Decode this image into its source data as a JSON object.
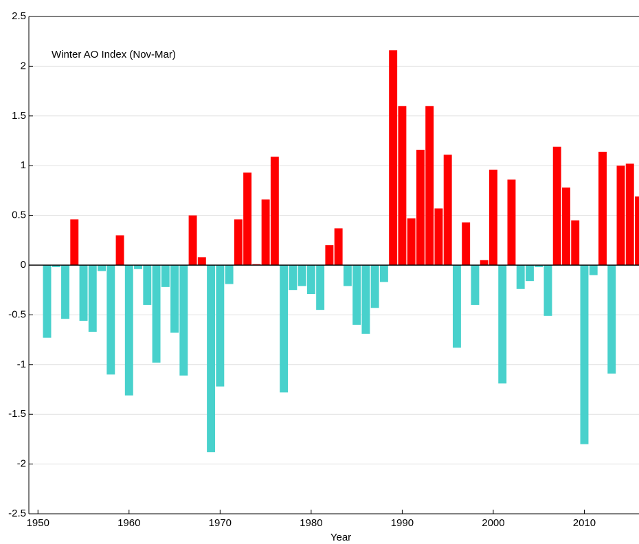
{
  "chart_data": {
    "type": "bar",
    "annotation": "Winter AO Index (Nov-Mar)",
    "xlabel": "Year",
    "x": [
      1951,
      1952,
      1953,
      1954,
      1955,
      1956,
      1957,
      1958,
      1959,
      1960,
      1961,
      1962,
      1963,
      1964,
      1965,
      1966,
      1967,
      1968,
      1969,
      1970,
      1971,
      1972,
      1973,
      1974,
      1975,
      1976,
      1977,
      1978,
      1979,
      1980,
      1981,
      1982,
      1983,
      1984,
      1985,
      1986,
      1987,
      1988,
      1989,
      1990,
      1991,
      1992,
      1993,
      1994,
      1995,
      1996,
      1997,
      1998,
      1999,
      2000,
      2001,
      2002,
      2003,
      2004,
      2005,
      2006,
      2007,
      2008,
      2009,
      2010,
      2011,
      2012,
      2013,
      2014,
      2015,
      2016
    ],
    "values": [
      -0.73,
      -0.02,
      -0.54,
      0.46,
      -0.56,
      -0.67,
      -0.06,
      -1.1,
      0.3,
      -1.31,
      -0.04,
      -0.4,
      -0.98,
      -0.22,
      -0.68,
      -1.11,
      0.5,
      0.08,
      -1.88,
      -1.22,
      -0.19,
      0.46,
      0.93,
      0.01,
      0.66,
      1.09,
      -1.28,
      -0.25,
      -0.21,
      -0.29,
      -0.45,
      0.2,
      0.37,
      -0.21,
      -0.6,
      -0.69,
      -0.43,
      -0.17,
      2.16,
      1.6,
      0.47,
      1.16,
      1.6,
      0.57,
      1.11,
      -0.83,
      0.43,
      -0.4,
      0.05,
      0.96,
      -1.19,
      0.86,
      -0.24,
      -0.16,
      -0.02,
      -0.51,
      1.19,
      0.78,
      0.45,
      -1.8,
      -0.1,
      1.14,
      -1.09,
      1.0,
      1.02,
      0.69
    ],
    "positive_color": "#ff0000",
    "negative_color": "#48d1cc",
    "xlim": [
      1949,
      2016
    ],
    "xticks": [
      1950,
      1960,
      1970,
      1980,
      1990,
      2000,
      2010
    ],
    "ylim": [
      -2.5,
      2.5
    ],
    "yticks": [
      -2.5,
      -2,
      -1.5,
      -1,
      -0.5,
      0,
      0.5,
      1,
      1.5,
      2,
      2.5
    ],
    "grid": true
  }
}
